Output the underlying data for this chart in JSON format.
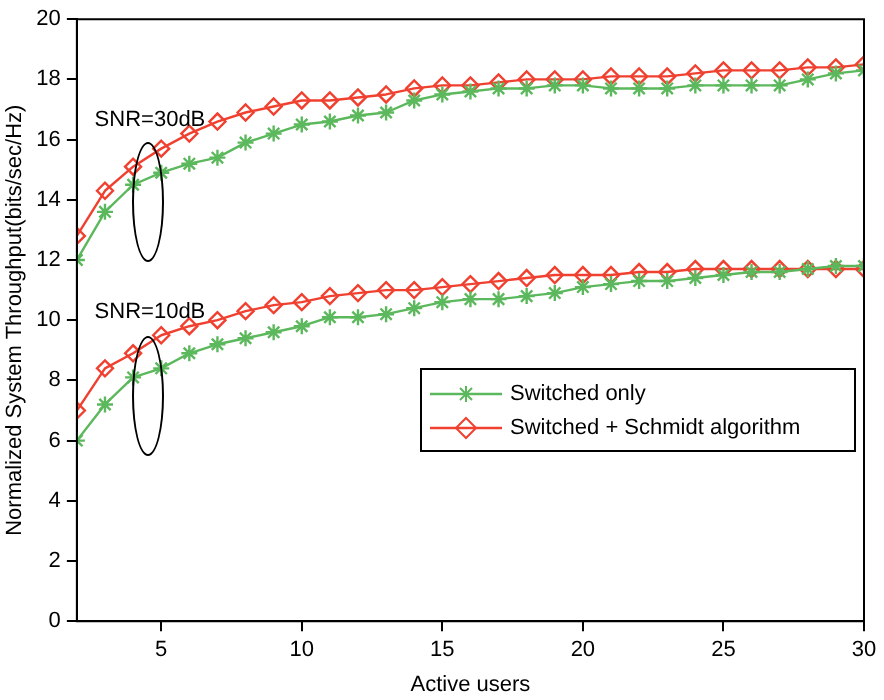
{
  "chart_data": {
    "type": "line",
    "xlabel": "Active users",
    "ylabel": "Normalized System Throughput(bits/sec/Hz)",
    "x": [
      2,
      3,
      4,
      5,
      6,
      7,
      8,
      9,
      10,
      11,
      12,
      13,
      14,
      15,
      16,
      17,
      18,
      19,
      20,
      21,
      22,
      23,
      24,
      25,
      26,
      27,
      28,
      29,
      30
    ],
    "xlim": [
      2,
      30
    ],
    "xticks": [
      5,
      10,
      15,
      20,
      25,
      30
    ],
    "ylim": [
      0,
      20
    ],
    "yticks": [
      0,
      2,
      4,
      6,
      8,
      10,
      12,
      14,
      16,
      18,
      20
    ],
    "grid": false,
    "legend": "right",
    "series": [
      {
        "name": "Switched only",
        "color": "#5cb85c",
        "marker": "cross",
        "values": [
          6.0,
          7.2,
          8.1,
          8.4,
          8.9,
          9.2,
          9.4,
          9.6,
          9.8,
          10.1,
          10.1,
          10.2,
          10.4,
          10.6,
          10.7,
          10.7,
          10.8,
          10.9,
          11.1,
          11.2,
          11.3,
          11.3,
          11.4,
          11.5,
          11.6,
          11.6,
          11.7,
          11.8,
          11.8
        ]
      },
      {
        "name": "Switched + Schmidt algorithm",
        "color": "#f04030",
        "marker": "diamond",
        "values": [
          7.0,
          8.4,
          8.9,
          9.5,
          9.8,
          10.0,
          10.3,
          10.5,
          10.6,
          10.8,
          10.9,
          11.0,
          11.0,
          11.1,
          11.2,
          11.3,
          11.4,
          11.5,
          11.5,
          11.5,
          11.6,
          11.6,
          11.7,
          11.7,
          11.7,
          11.7,
          11.7,
          11.7,
          11.7
        ]
      },
      {
        "color": "#5cb85c",
        "marker": "cross",
        "values": [
          12.0,
          13.6,
          14.5,
          14.9,
          15.2,
          15.4,
          15.9,
          16.2,
          16.5,
          16.6,
          16.8,
          16.9,
          17.3,
          17.5,
          17.6,
          17.7,
          17.7,
          17.8,
          17.8,
          17.7,
          17.7,
          17.7,
          17.8,
          17.8,
          17.8,
          17.8,
          18.0,
          18.2,
          18.3
        ]
      },
      {
        "color": "#f04030",
        "marker": "diamond",
        "values": [
          12.8,
          14.3,
          15.1,
          15.7,
          16.2,
          16.6,
          16.9,
          17.1,
          17.3,
          17.3,
          17.4,
          17.5,
          17.7,
          17.8,
          17.8,
          17.9,
          18.0,
          18.0,
          18.0,
          18.1,
          18.1,
          18.1,
          18.2,
          18.3,
          18.3,
          18.3,
          18.4,
          18.4,
          18.5
        ]
      }
    ],
    "annotations": [
      "SNR=30dB",
      "SNR=10dB"
    ]
  }
}
